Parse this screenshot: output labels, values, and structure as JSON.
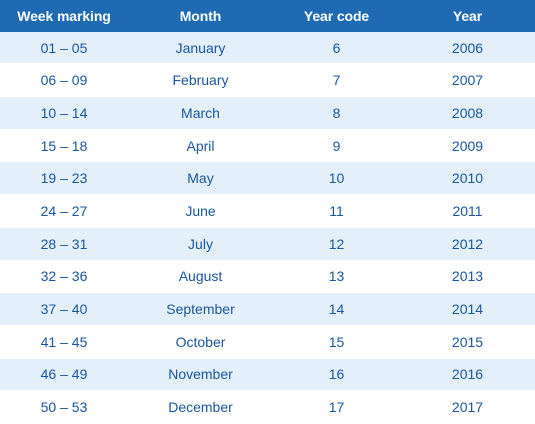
{
  "table": {
    "headers": [
      "Week marking",
      "Month",
      "Year code",
      "Year"
    ],
    "rows": [
      [
        "01 – 05",
        "January",
        "6",
        "2006"
      ],
      [
        "06 – 09",
        "February",
        "7",
        "2007"
      ],
      [
        "10 – 14",
        "March",
        "8",
        "2008"
      ],
      [
        "15 – 18",
        "April",
        "9",
        "2009"
      ],
      [
        "19 – 23",
        "May",
        "10",
        "2010"
      ],
      [
        "24 – 27",
        "June",
        "11",
        "2011"
      ],
      [
        "28 – 31",
        "July",
        "12",
        "2012"
      ],
      [
        "32 – 36",
        "August",
        "13",
        "2013"
      ],
      [
        "37 – 40",
        "September",
        "14",
        "2014"
      ],
      [
        "41 – 45",
        "October",
        "15",
        "2015"
      ],
      [
        "46 – 49",
        "November",
        "16",
        "2016"
      ],
      [
        "50 – 53",
        "December",
        "17",
        "2017"
      ]
    ]
  },
  "colors": {
    "header_bg": "#1e6ab3",
    "header_text": "#ffffff",
    "row_alt_bg": "#e3f0fa",
    "row_bg": "#ffffff",
    "cell_text": "#1a56a0"
  }
}
